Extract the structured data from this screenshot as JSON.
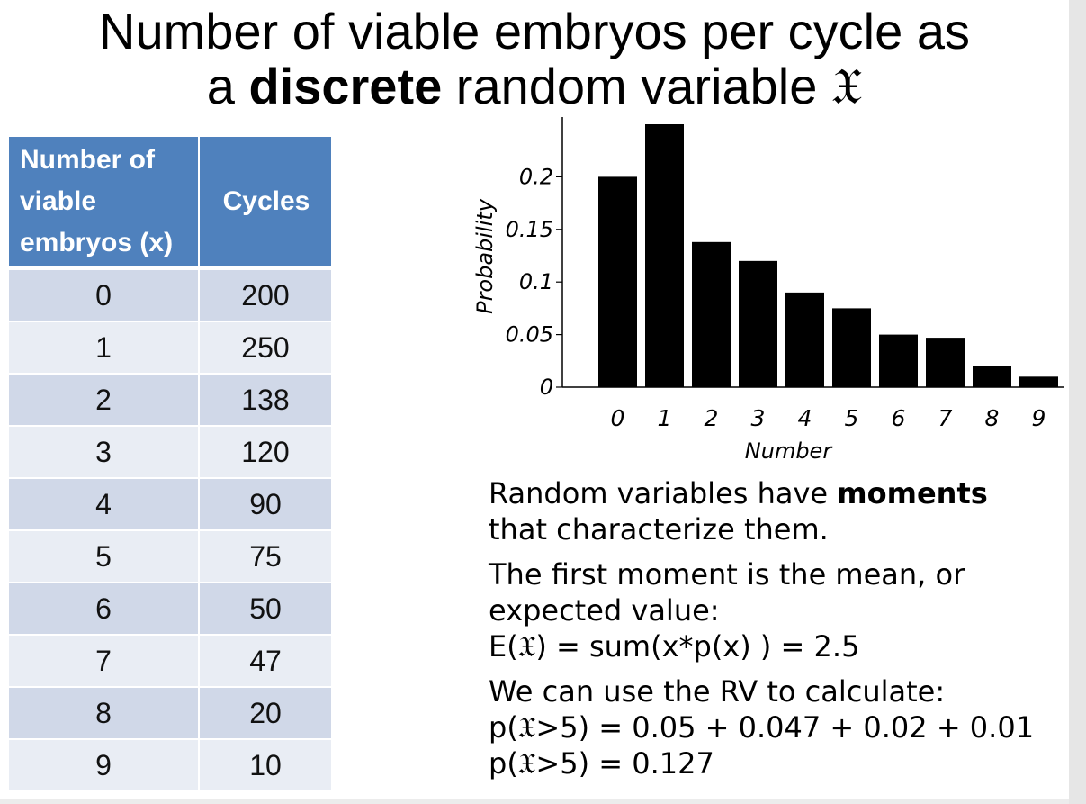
{
  "title": {
    "line1": "Number of viable embryos per cycle as",
    "line2_pre": "a ",
    "line2_bold": "discrete",
    "line2_post": " random variable 𝔛"
  },
  "table": {
    "headers": [
      "Number of viable embryos (x)",
      "Cycles"
    ],
    "rows": [
      [
        "0",
        "200"
      ],
      [
        "1",
        "250"
      ],
      [
        "2",
        "138"
      ],
      [
        "3",
        "120"
      ],
      [
        "4",
        "90"
      ],
      [
        "5",
        "75"
      ],
      [
        "6",
        "50"
      ],
      [
        "7",
        "47"
      ],
      [
        "8",
        "20"
      ],
      [
        "9",
        "10"
      ]
    ]
  },
  "chart_data": {
    "type": "bar",
    "categories": [
      "0",
      "1",
      "2",
      "3",
      "4",
      "5",
      "6",
      "7",
      "8",
      "9"
    ],
    "values": [
      0.2,
      0.25,
      0.138,
      0.12,
      0.09,
      0.075,
      0.05,
      0.047,
      0.02,
      0.01
    ],
    "xlabel": "Number",
    "ylabel": "Probability",
    "yticks": [
      0,
      0.05,
      0.1,
      0.15,
      0.2
    ],
    "ytick_labels": [
      "0",
      "0.05",
      "0.1",
      "0.15",
      "0.2"
    ],
    "ylim": [
      0,
      0.25
    ],
    "bar_color": "#000000",
    "grid": false
  },
  "notes": {
    "p1_pre": "Random variables have ",
    "p1_bold": "moments",
    "p1_line2": "that characterize them.",
    "p2_line1": "The first moment is the mean, or",
    "p2_line2": "expected value:",
    "p2_line3": "E(𝔛) = sum(x*p(x) ) = 2.5",
    "p3_line1": "We can use the RV to calculate:",
    "p3_line2": "p(𝔛>5) = 0.05 + 0.047 + 0.02 + 0.01",
    "p3_line3": "p(𝔛>5) = 0.127"
  },
  "colors": {
    "header_bg": "#4f81bd",
    "row_dark": "#d0d8e8",
    "row_light": "#e9edf4"
  }
}
